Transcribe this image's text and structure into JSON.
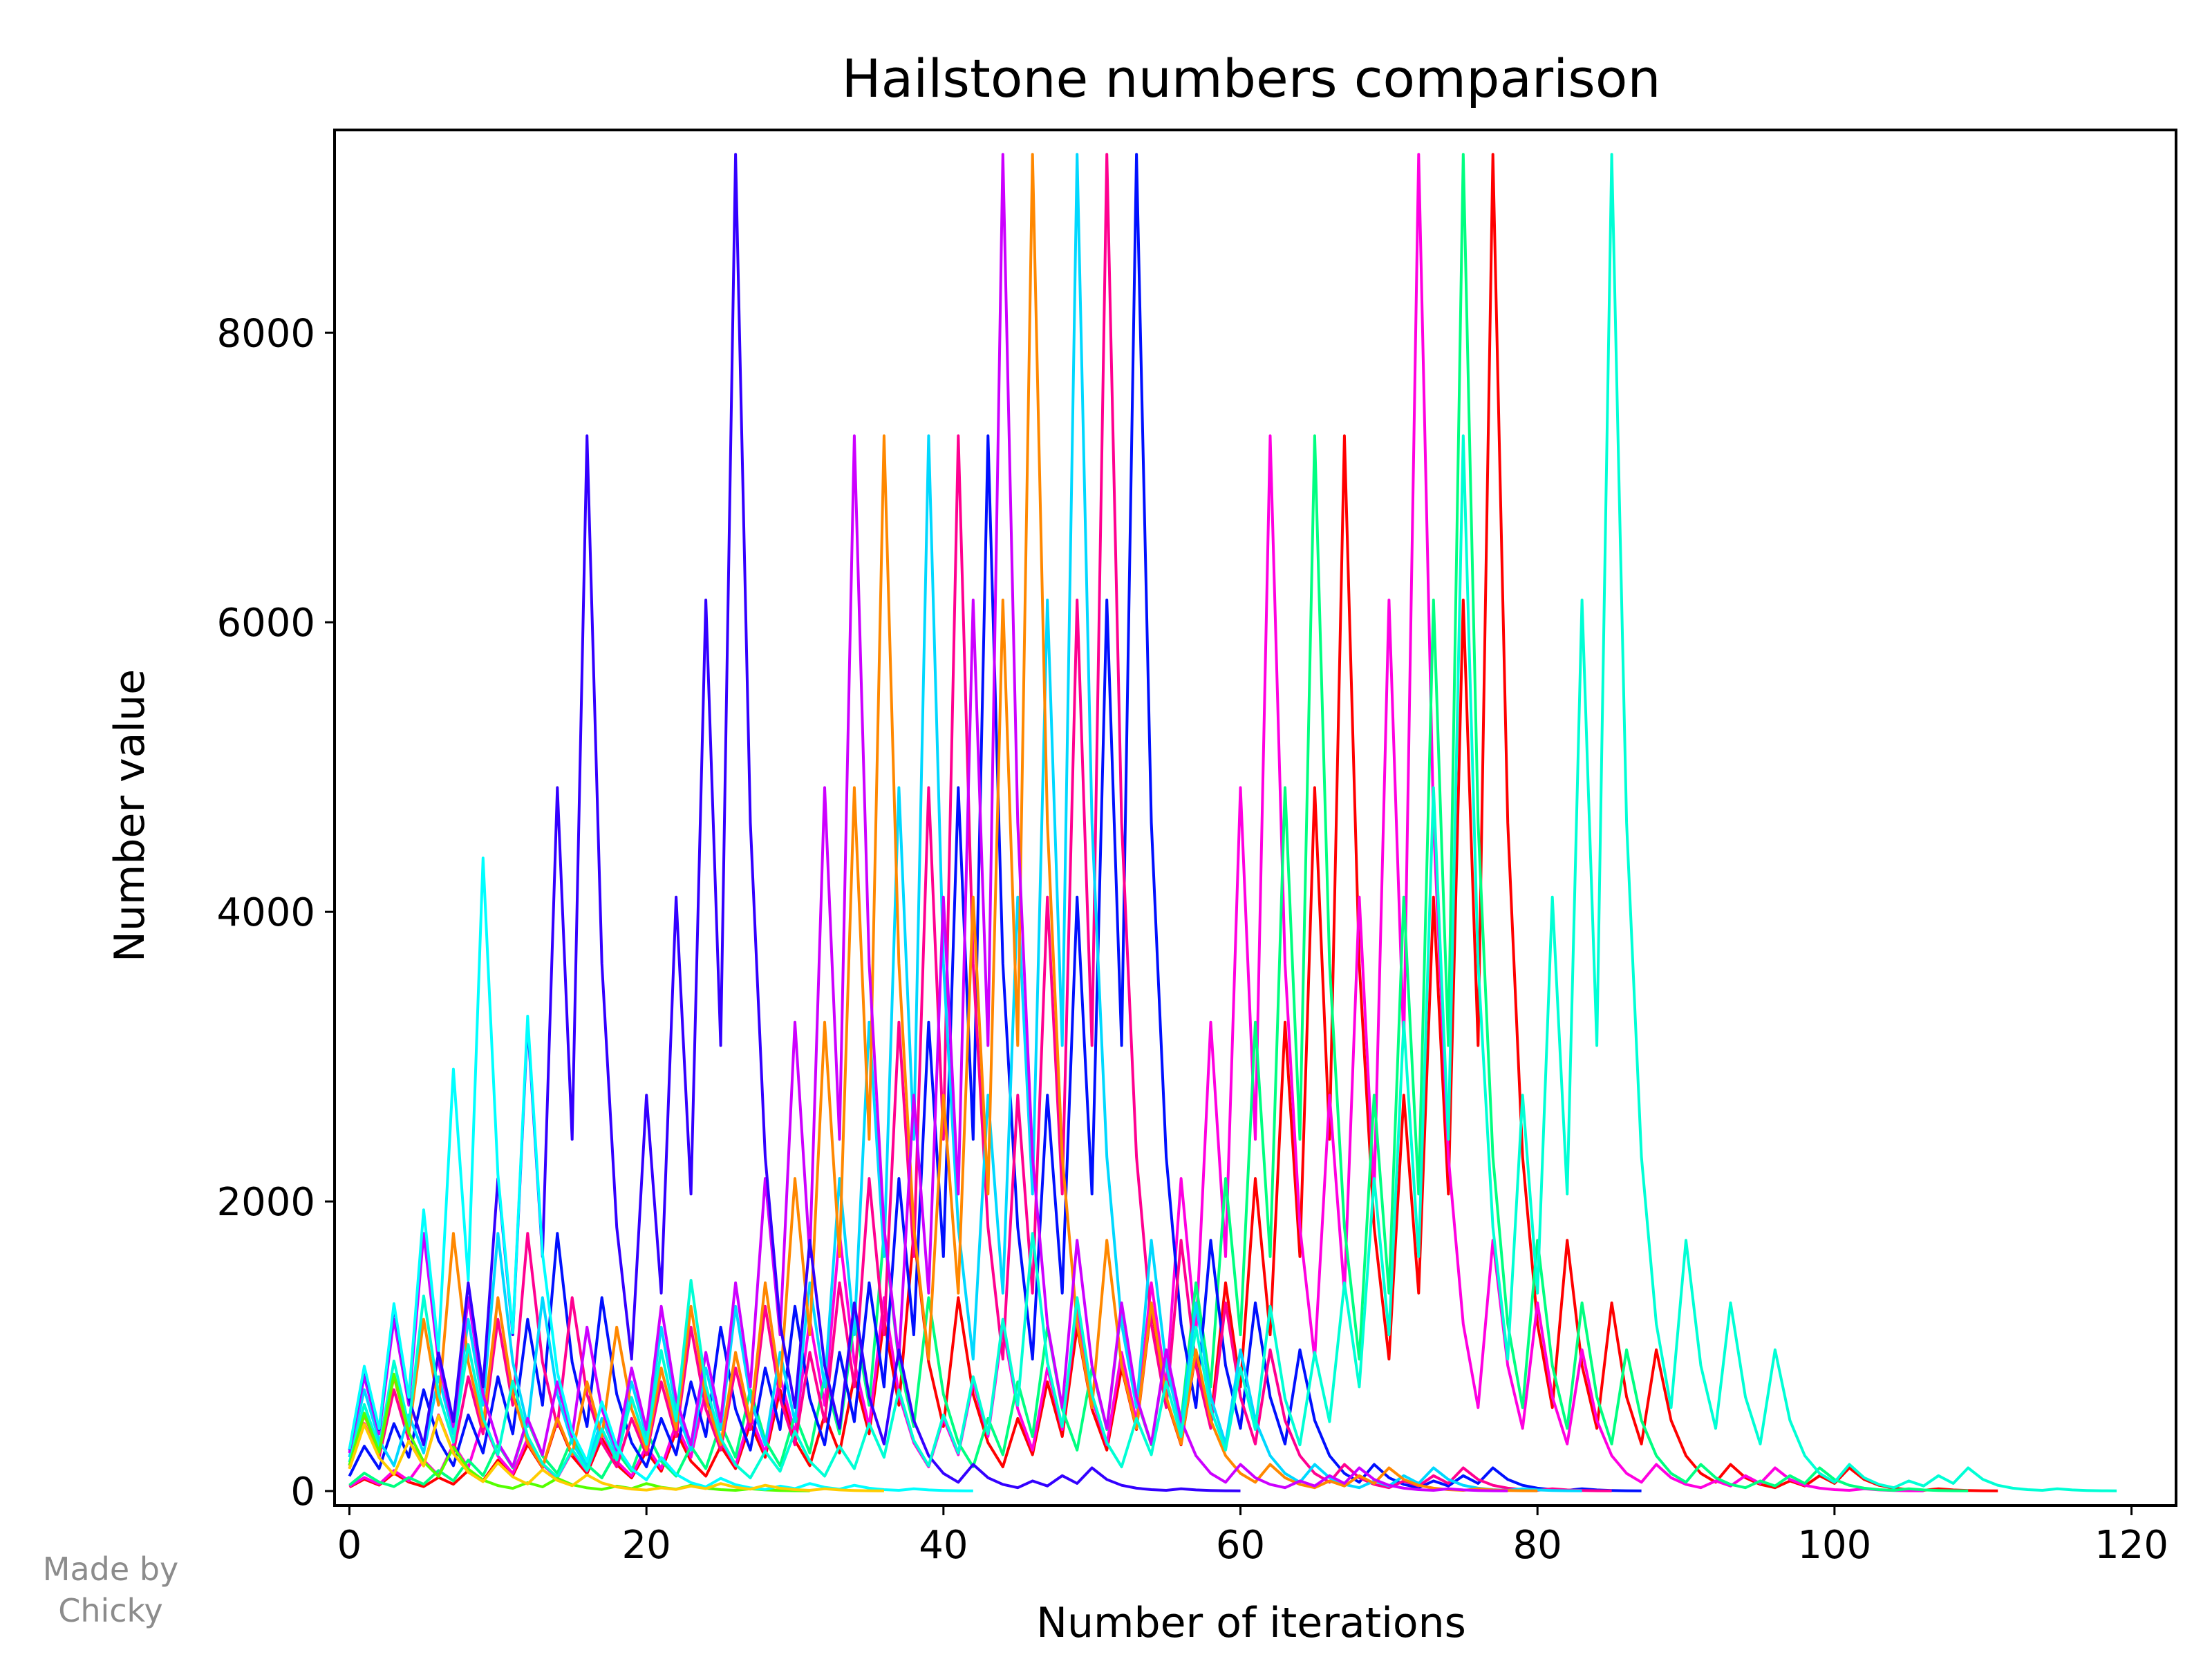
{
  "credit": {
    "line1": "Made by",
    "line2": "Chicky"
  },
  "chart_data": {
    "type": "line",
    "title": "Hailstone numbers comparison",
    "xlabel": "Number of iterations",
    "ylabel": "Number value",
    "xlim": [
      -1,
      123
    ],
    "ylim": [
      -100,
      9400
    ],
    "xticks": [
      0,
      20,
      40,
      60,
      80,
      100,
      120
    ],
    "yticks": [
      0,
      2000,
      4000,
      6000,
      8000
    ],
    "grid": false,
    "legend": "none",
    "series": [
      {
        "color": "#ff0000",
        "values": [
          27,
          82,
          41,
          124,
          62,
          31,
          94,
          47,
          142,
          71,
          214,
          107,
          322,
          161,
          484,
          242,
          121,
          364,
          182,
          91,
          274,
          137,
          412,
          206,
          103,
          310,
          155,
          466,
          233,
          700,
          350,
          175,
          526,
          263,
          790,
          395,
          1186,
          593,
          1780,
          890,
          445,
          1336,
          668,
          334,
          167,
          502,
          251,
          754,
          377,
          1132,
          566,
          283,
          850,
          425,
          1276,
          638,
          319,
          958,
          479,
          1438,
          719,
          2158,
          1079,
          3238,
          1619,
          4858,
          2429,
          7288,
          3644,
          1822,
          911,
          2734,
          1367,
          4102,
          2051,
          6154,
          3077,
          9232,
          4616,
          2308,
          1154,
          577,
          1732,
          866,
          433,
          1300,
          650,
          325,
          976,
          488,
          244,
          122,
          61,
          184,
          92,
          46,
          23,
          70,
          35,
          106,
          53,
          160,
          80,
          40,
          20,
          10,
          5,
          16,
          8,
          4,
          2,
          1
        ]
      },
      {
        "color": "#ff00e0",
        "values": [
          31,
          94,
          47,
          142,
          71,
          214,
          107,
          322,
          161,
          484,
          242,
          121,
          364,
          182,
          91,
          274,
          137,
          412,
          206,
          103,
          310,
          155,
          466,
          233,
          700,
          350,
          175,
          526,
          263,
          790,
          395,
          1186,
          593,
          1780,
          890,
          445,
          1336,
          668,
          334,
          167,
          502,
          251,
          754,
          377,
          1132,
          566,
          283,
          850,
          425,
          1276,
          638,
          319,
          958,
          479,
          1438,
          719,
          2158,
          1079,
          3238,
          1619,
          4858,
          2429,
          7288,
          3644,
          1822,
          911,
          2734,
          1367,
          4102,
          2051,
          6154,
          3077,
          9232,
          4616,
          2308,
          1154,
          577,
          1732,
          866,
          433,
          1300,
          650,
          325,
          976,
          488,
          244,
          122,
          61,
          184,
          92,
          46,
          23,
          70,
          35,
          106,
          53,
          160,
          80,
          40,
          20,
          10,
          5,
          16,
          8,
          4,
          2,
          1
        ]
      },
      {
        "color": "#00ff80",
        "values": [
          41,
          124,
          62,
          31,
          94,
          47,
          142,
          71,
          214,
          107,
          322,
          161,
          484,
          242,
          121,
          364,
          182,
          91,
          274,
          137,
          412,
          206,
          103,
          310,
          155,
          466,
          233,
          700,
          350,
          175,
          526,
          263,
          790,
          395,
          1186,
          593,
          1780,
          890,
          445,
          1336,
          668,
          334,
          167,
          502,
          251,
          754,
          377,
          1132,
          566,
          283,
          850,
          425,
          1276,
          638,
          319,
          958,
          479,
          1438,
          719,
          2158,
          1079,
          3238,
          1619,
          4858,
          2429,
          7288,
          3644,
          1822,
          911,
          2734,
          1367,
          4102,
          2051,
          6154,
          3077,
          9232,
          4616,
          2308,
          1154,
          577,
          1732,
          866,
          433,
          1300,
          650,
          325,
          976,
          488,
          244,
          122,
          61,
          184,
          92,
          46,
          23,
          70,
          35,
          106,
          53,
          160,
          80,
          40,
          20,
          10,
          5,
          16,
          8,
          4,
          2,
          1
        ]
      },
      {
        "color": "#0010ff",
        "values": [
          103,
          310,
          155,
          466,
          233,
          700,
          350,
          175,
          526,
          263,
          790,
          395,
          1186,
          593,
          1780,
          890,
          445,
          1336,
          668,
          334,
          167,
          502,
          251,
          754,
          377,
          1132,
          566,
          283,
          850,
          425,
          1276,
          638,
          319,
          958,
          479,
          1438,
          719,
          2158,
          1079,
          3238,
          1619,
          4858,
          2429,
          7288,
          3644,
          1822,
          911,
          2734,
          1367,
          4102,
          2051,
          6154,
          3077,
          9232,
          4616,
          2308,
          1154,
          577,
          1732,
          866,
          433,
          1300,
          650,
          325,
          976,
          488,
          244,
          122,
          61,
          184,
          92,
          46,
          23,
          70,
          35,
          106,
          53,
          160,
          80,
          40,
          20,
          10,
          5,
          16,
          8,
          4,
          2,
          1
        ]
      },
      {
        "color": "#ff0090",
        "values": [
          155,
          466,
          233,
          700,
          350,
          175,
          526,
          263,
          790,
          395,
          1186,
          593,
          1780,
          890,
          445,
          1336,
          668,
          334,
          167,
          502,
          251,
          754,
          377,
          1132,
          566,
          283,
          850,
          425,
          1276,
          638,
          319,
          958,
          479,
          1438,
          719,
          2158,
          1079,
          3238,
          1619,
          4858,
          2429,
          7288,
          3644,
          1822,
          911,
          2734,
          1367,
          4102,
          2051,
          6154,
          3077,
          9232,
          4616,
          2308,
          1154,
          577,
          1732,
          866,
          433,
          1300,
          650,
          325,
          976,
          488,
          244,
          122,
          61,
          184,
          92,
          46,
          23,
          70,
          35,
          106,
          53,
          160,
          80,
          40,
          20,
          10,
          5,
          16,
          8,
          4,
          2,
          1
        ]
      },
      {
        "color": "#00d8ff",
        "values": [
          233,
          700,
          350,
          175,
          526,
          263,
          790,
          395,
          1186,
          593,
          1780,
          890,
          445,
          1336,
          668,
          334,
          167,
          502,
          251,
          754,
          377,
          1132,
          566,
          283,
          850,
          425,
          1276,
          638,
          319,
          958,
          479,
          1438,
          719,
          2158,
          1079,
          3238,
          1619,
          4858,
          2429,
          7288,
          3644,
          1822,
          911,
          2734,
          1367,
          4102,
          2051,
          6154,
          3077,
          9232,
          4616,
          2308,
          1154,
          577,
          1732,
          866,
          433,
          1300,
          650,
          325,
          976,
          488,
          244,
          122,
          61,
          184,
          92,
          46,
          23,
          70,
          35,
          106,
          53,
          160,
          80,
          40,
          20,
          10,
          5,
          16,
          8,
          4,
          2,
          1
        ]
      },
      {
        "color": "#ff8800",
        "values": [
          175,
          526,
          263,
          790,
          395,
          1186,
          593,
          1780,
          890,
          445,
          1336,
          668,
          334,
          167,
          502,
          251,
          754,
          377,
          1132,
          566,
          283,
          850,
          425,
          1276,
          638,
          319,
          958,
          479,
          1438,
          719,
          2158,
          1079,
          3238,
          1619,
          4858,
          2429,
          7288,
          3644,
          1822,
          911,
          2734,
          1367,
          4102,
          2051,
          6154,
          3077,
          9232,
          4616,
          2308,
          1154,
          577,
          1732,
          866,
          433,
          1300,
          650,
          325,
          976,
          488,
          244,
          122,
          61,
          184,
          92,
          46,
          23,
          70,
          35,
          106,
          53,
          160,
          80,
          40,
          20,
          10,
          5,
          16,
          8,
          4,
          2,
          1
        ]
      },
      {
        "color": "#cc00ff",
        "values": [
          263,
          790,
          395,
          1186,
          593,
          1780,
          890,
          445,
          1336,
          668,
          334,
          167,
          502,
          251,
          754,
          377,
          1132,
          566,
          283,
          850,
          425,
          1276,
          638,
          319,
          958,
          479,
          1438,
          719,
          2158,
          1079,
          3238,
          1619,
          4858,
          2429,
          7288,
          3644,
          1822,
          911,
          2734,
          1367,
          4102,
          2051,
          6154,
          3077,
          9232,
          4616,
          2308,
          1154,
          577,
          1732,
          866,
          433,
          1300,
          650,
          325,
          976,
          488,
          244,
          122,
          61,
          184,
          92,
          46,
          23,
          70,
          35,
          106,
          53,
          160,
          80,
          40,
          20,
          10,
          5,
          16,
          8,
          4,
          2,
          1
        ]
      },
      {
        "color": "#3300ff",
        "values": [
          283,
          850,
          425,
          1276,
          638,
          319,
          958,
          479,
          1438,
          719,
          2158,
          1079,
          3238,
          1619,
          4858,
          2429,
          7288,
          3644,
          1822,
          911,
          2734,
          1367,
          4102,
          2051,
          6154,
          3077,
          9232,
          4616,
          2308,
          1154,
          577,
          1732,
          866,
          433,
          1300,
          650,
          325,
          976,
          488,
          244,
          122,
          61,
          184,
          92,
          46,
          23,
          70,
          35,
          106,
          53,
          160,
          80,
          40,
          20,
          10,
          5,
          16,
          8,
          4,
          2,
          1
        ]
      },
      {
        "color": "#00ffd5",
        "values": [
          199,
          598,
          299,
          898,
          449,
          1348,
          674,
          337,
          1012,
          506,
          253,
          760,
          380,
          190,
          95,
          286,
          143,
          430,
          215,
          646,
          323,
          970,
          485,
          1456,
          728,
          364,
          182,
          91,
          274,
          137,
          412,
          206,
          103,
          310,
          155,
          466,
          233,
          700,
          350,
          175,
          526,
          263,
          790,
          395,
          1186,
          593,
          1780,
          890,
          445,
          1336,
          668,
          334,
          167,
          502,
          251,
          754,
          377,
          1132,
          566,
          283,
          850,
          425,
          1276,
          638,
          319,
          958,
          479,
          1438,
          719,
          2158,
          1079,
          3238,
          1619,
          4858,
          2429,
          7288,
          3644,
          1822,
          911,
          2734,
          1367,
          4102,
          2051,
          6154,
          3077,
          9232,
          4616,
          2308,
          1154,
          577,
          1732,
          866,
          433,
          1300,
          650,
          325,
          976,
          488,
          244,
          122,
          61,
          184,
          92,
          46,
          23,
          70,
          35,
          106,
          53,
          160,
          80,
          40,
          20,
          10,
          5,
          16,
          8,
          4,
          2,
          1
        ]
      },
      {
        "color": "#55ff00",
        "values": [
          179,
          538,
          269,
          808,
          404,
          202,
          101,
          304,
          152,
          76,
          38,
          19,
          58,
          29,
          88,
          44,
          22,
          11,
          34,
          17,
          52,
          26,
          13,
          40,
          20,
          10,
          5,
          16,
          8,
          4,
          2,
          1
        ]
      },
      {
        "color": "#00ffff",
        "values": [
          287,
          862,
          431,
          1294,
          647,
          1942,
          971,
          2914,
          1457,
          4372,
          2186,
          1093,
          3280,
          1640,
          820,
          410,
          205,
          616,
          308,
          154,
          77,
          232,
          116,
          58,
          29,
          88,
          44,
          22,
          11,
          34,
          17,
          52,
          26,
          13,
          40,
          20,
          10,
          5,
          16,
          8,
          4,
          2,
          1
        ]
      },
      {
        "color": "#ffcc00",
        "values": [
          153,
          460,
          230,
          115,
          346,
          173,
          520,
          260,
          130,
          65,
          196,
          98,
          49,
          148,
          74,
          37,
          112,
          56,
          28,
          14,
          7,
          22,
          11,
          34,
          17,
          52,
          26,
          13,
          40,
          20,
          10,
          5,
          16,
          8,
          4,
          2,
          1
        ]
      }
    ]
  }
}
